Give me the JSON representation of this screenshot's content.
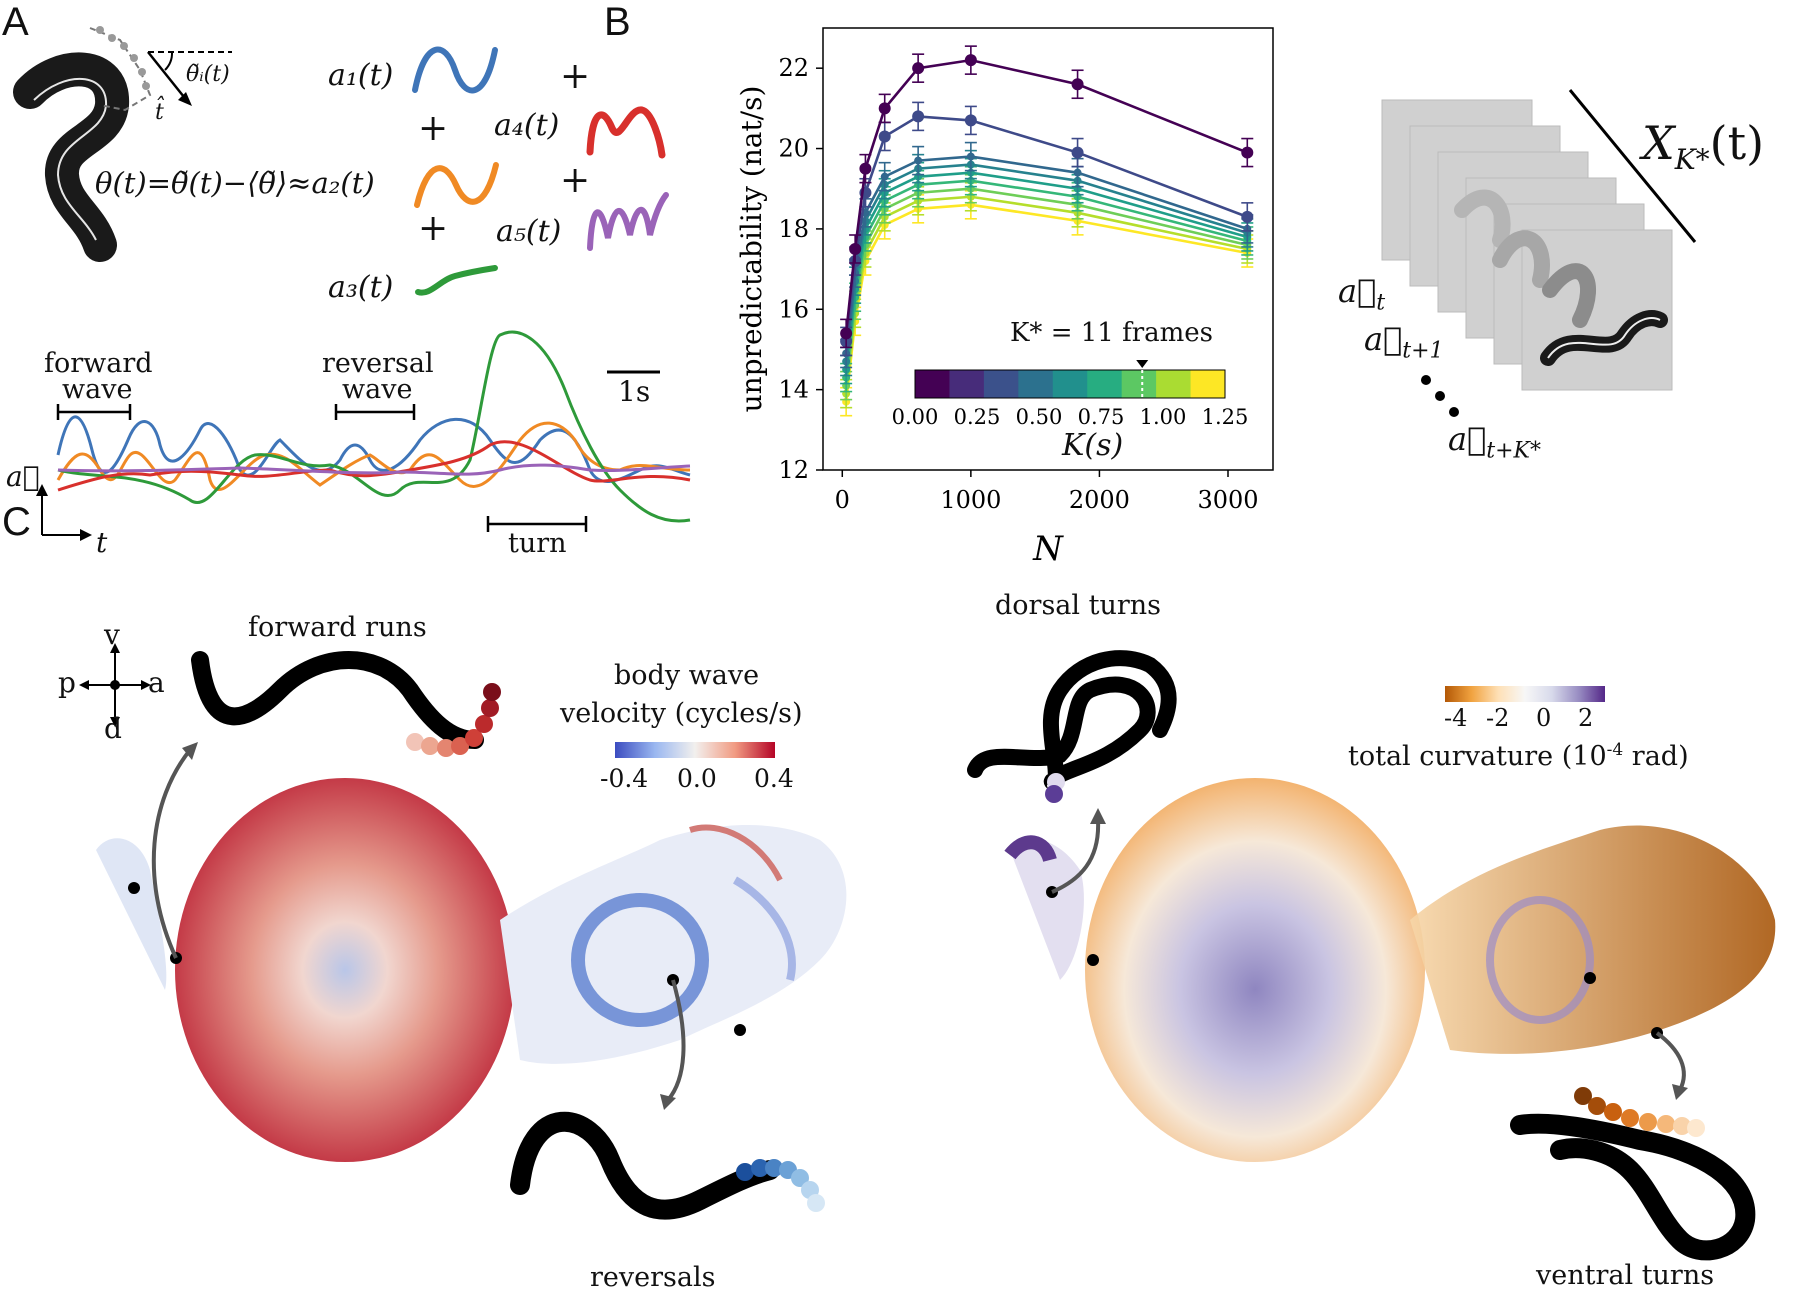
{
  "panels": {
    "a": "A",
    "b": "B",
    "c": "C"
  },
  "panel_a": {
    "theta_tilde": "θ̃ᵢ(t)",
    "t_hat": "t̂",
    "equation": "θ(t)=θ̃(t)−⟨θ̃⟩≈a₂(t)",
    "modes": [
      {
        "label": "a₁(t)",
        "color": "#3f75b8"
      },
      {
        "label": "a₂(t)",
        "color": "#f08a24"
      },
      {
        "label": "a₃(t)",
        "color": "#2e9a3a"
      },
      {
        "label": "a₄(t)",
        "color": "#d8302c"
      },
      {
        "label": "a₅(t)",
        "color": "#9a63b8"
      }
    ],
    "plus": "+",
    "forward_wave": [
      "forward",
      "wave"
    ],
    "reversal_wave": [
      "reversal",
      "wave"
    ],
    "turn": "turn",
    "scale_bar": "1s",
    "y_axis": "a⃗",
    "x_axis": "t"
  },
  "panel_b": {
    "cbar_title": "K* = 11 frames",
    "cbar_label": "K(s)",
    "stack_label": "X",
    "stack_sub": "K*",
    "stack_arg": "(t)",
    "at": "a⃗",
    "at_sub": "t",
    "at1_sub": "t+1",
    "atk_sub": "t+K*"
  },
  "chart_data": {
    "type": "line",
    "xlabel": "N",
    "ylabel": "unpredictability (nat/s)",
    "xlim": [
      -150,
      3350
    ],
    "ylim": [
      12,
      23
    ],
    "xticks": [
      0,
      1000,
      2000,
      3000
    ],
    "yticks": [
      12,
      14,
      16,
      18,
      20,
      22
    ],
    "x": [
      30,
      100,
      180,
      330,
      590,
      1000,
      1830,
      3150
    ],
    "colorbar": {
      "ticks": [
        "0.00",
        "0.25",
        "0.50",
        "0.75",
        "1.00",
        "1.25"
      ],
      "colors": [
        "#440154",
        "#472c7a",
        "#3b518b",
        "#2c718e",
        "#21908d",
        "#27ad81",
        "#5cc863",
        "#aadc32",
        "#fde725"
      ]
    },
    "series": [
      {
        "color": "#440154",
        "values": [
          15.4,
          17.5,
          19.5,
          21.0,
          22.0,
          22.2,
          21.6,
          19.9
        ]
      },
      {
        "color": "#3e4a89",
        "values": [
          15.2,
          17.2,
          18.9,
          20.3,
          20.8,
          20.7,
          19.9,
          18.3
        ]
      },
      {
        "color": "#31688e",
        "values": [
          14.9,
          16.9,
          18.4,
          19.3,
          19.7,
          19.8,
          19.4,
          18.0
        ]
      },
      {
        "color": "#26828e",
        "values": [
          14.7,
          16.7,
          18.2,
          19.1,
          19.5,
          19.6,
          19.2,
          17.9
        ]
      },
      {
        "color": "#1f9e89",
        "values": [
          14.5,
          16.5,
          18.0,
          18.9,
          19.3,
          19.4,
          19.0,
          17.8
        ]
      },
      {
        "color": "#35b779",
        "values": [
          14.3,
          16.3,
          17.8,
          18.7,
          19.1,
          19.2,
          18.8,
          17.7
        ]
      },
      {
        "color": "#6ece58",
        "values": [
          14.1,
          16.1,
          17.6,
          18.5,
          18.9,
          19.0,
          18.6,
          17.6
        ]
      },
      {
        "color": "#b5de2b",
        "values": [
          13.9,
          15.9,
          17.4,
          18.3,
          18.7,
          18.8,
          18.4,
          17.5
        ]
      },
      {
        "color": "#fde725",
        "values": [
          13.7,
          15.7,
          17.2,
          18.1,
          18.5,
          18.6,
          18.2,
          17.4
        ]
      }
    ]
  },
  "panel_c": {
    "compass": {
      "v": "v",
      "d": "d",
      "p": "p",
      "a": "a"
    },
    "forward_runs": "forward runs",
    "reversals": "reversals",
    "dorsal_turns": "dorsal turns",
    "ventral_turns": "ventral turns",
    "left_cbar": {
      "title1": "body wave",
      "title2": "velocity (cycles/s)",
      "ticks": [
        "-0.4",
        "0.0",
        "0.4"
      ]
    },
    "right_cbar": {
      "ticks": [
        "-4",
        "-2",
        "0",
        "2"
      ],
      "label": "total curvature (10",
      "label_exp": "-4",
      "label_end": " rad)"
    }
  }
}
